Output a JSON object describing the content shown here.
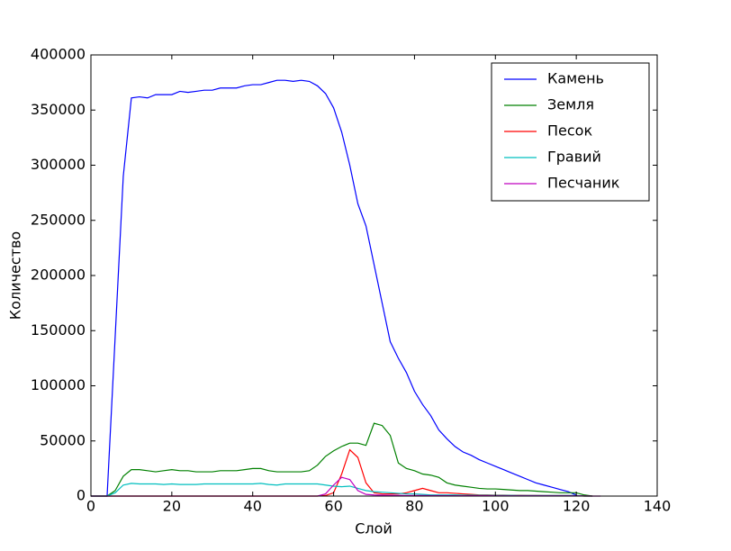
{
  "chart_data": {
    "type": "line",
    "xlabel": "Слой",
    "ylabel": "Количество",
    "x": [
      0,
      2,
      4,
      6,
      8,
      10,
      12,
      14,
      16,
      18,
      20,
      22,
      24,
      26,
      28,
      30,
      32,
      34,
      36,
      38,
      40,
      42,
      44,
      46,
      48,
      50,
      52,
      54,
      56,
      58,
      60,
      62,
      64,
      66,
      68,
      70,
      72,
      74,
      76,
      78,
      80,
      82,
      84,
      86,
      88,
      90,
      92,
      94,
      96,
      98,
      100,
      102,
      104,
      106,
      108,
      110,
      112,
      114,
      116,
      118,
      120,
      122,
      124,
      126
    ],
    "series": [
      {
        "name": "Камень",
        "color": "#0000ff",
        "values": [
          0,
          0,
          0,
          145000,
          290000,
          361000,
          362000,
          361000,
          364000,
          364000,
          364000,
          367000,
          366000,
          367000,
          368000,
          368000,
          370000,
          370000,
          370000,
          372000,
          373000,
          373000,
          375000,
          377000,
          377000,
          376000,
          377000,
          376000,
          372000,
          365000,
          352000,
          330000,
          300000,
          265000,
          245000,
          210000,
          175000,
          140000,
          125000,
          112000,
          95000,
          83000,
          73000,
          60000,
          52000,
          45000,
          40000,
          37000,
          33000,
          30000,
          27000,
          24000,
          21000,
          18000,
          15000,
          12000,
          10000,
          8000,
          6000,
          4000,
          1000,
          null,
          null,
          null
        ]
      },
      {
        "name": "Земля",
        "color": "#008000",
        "values": [
          0,
          0,
          0,
          5000,
          18000,
          24000,
          24000,
          23000,
          22000,
          23000,
          24000,
          23000,
          23000,
          22000,
          22000,
          22000,
          23000,
          23000,
          23000,
          24000,
          25000,
          25000,
          23000,
          22000,
          22000,
          22000,
          22000,
          23000,
          28000,
          36000,
          41000,
          45000,
          48000,
          48000,
          46000,
          66000,
          64000,
          55000,
          30000,
          25000,
          23000,
          20000,
          19000,
          17000,
          12000,
          10000,
          9000,
          8000,
          7000,
          6500,
          6500,
          6000,
          5500,
          5000,
          5000,
          4500,
          4000,
          3500,
          3000,
          3000,
          3000,
          1000,
          0,
          null
        ]
      },
      {
        "name": "Песок",
        "color": "#ff0000",
        "values": [
          0,
          0,
          0,
          0,
          0,
          0,
          0,
          0,
          0,
          0,
          0,
          0,
          0,
          0,
          0,
          0,
          0,
          0,
          0,
          0,
          0,
          0,
          0,
          0,
          0,
          0,
          0,
          0,
          0,
          500,
          3000,
          20000,
          42000,
          35000,
          12000,
          3000,
          2000,
          2000,
          2000,
          3000,
          5000,
          7000,
          5000,
          3000,
          3000,
          2500,
          2000,
          1500,
          1000,
          1000,
          800,
          800,
          700,
          700,
          600,
          600,
          500,
          500,
          500,
          500,
          400,
          0,
          0,
          null
        ]
      },
      {
        "name": "Гравий",
        "color": "#00bfbf",
        "values": [
          0,
          0,
          0,
          3000,
          10000,
          11500,
          11000,
          11000,
          11000,
          10500,
          11000,
          10500,
          10500,
          10500,
          11000,
          11000,
          11000,
          11000,
          11000,
          11000,
          11000,
          11500,
          10500,
          10000,
          11000,
          11000,
          11000,
          11000,
          11000,
          10000,
          9000,
          8500,
          9000,
          7000,
          5000,
          4000,
          3500,
          3000,
          2500,
          2000,
          2000,
          1500,
          1000,
          1000,
          1000,
          1000,
          800,
          800,
          700,
          700,
          600,
          600,
          600,
          500,
          500,
          500,
          500,
          500,
          500,
          500,
          500,
          0,
          0,
          null
        ]
      },
      {
        "name": "Песчаник",
        "color": "#bf00bf",
        "values": [
          0,
          0,
          0,
          0,
          0,
          0,
          0,
          0,
          0,
          0,
          0,
          0,
          0,
          0,
          0,
          0,
          0,
          0,
          0,
          0,
          0,
          0,
          0,
          0,
          0,
          0,
          0,
          0,
          0,
          2000,
          10000,
          17000,
          15000,
          5000,
          1500,
          1000,
          800,
          700,
          600,
          500,
          500,
          500,
          400,
          400,
          400,
          300,
          300,
          300,
          300,
          300,
          200,
          200,
          200,
          200,
          200,
          200,
          200,
          200,
          200,
          200,
          200,
          100,
          0,
          0
        ]
      }
    ],
    "xlim": [
      0,
      140
    ],
    "xticks": [
      0,
      20,
      40,
      60,
      80,
      100,
      120,
      140
    ],
    "ylim": [
      0,
      400000
    ],
    "yticks": [
      0,
      50000,
      100000,
      150000,
      200000,
      250000,
      300000,
      350000,
      400000
    ],
    "legend": "upper right"
  }
}
